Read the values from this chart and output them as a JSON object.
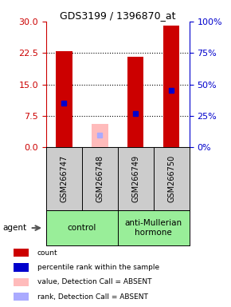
{
  "title": "GDS3199 / 1396870_at",
  "samples": [
    "GSM266747",
    "GSM266748",
    "GSM266749",
    "GSM266750"
  ],
  "count_values": [
    23.0,
    5.5,
    21.5,
    29.0
  ],
  "percentile_values": [
    35.0,
    10.0,
    27.0,
    45.0
  ],
  "absent": [
    false,
    true,
    false,
    false
  ],
  "ylim_left": [
    0,
    30
  ],
  "ylim_right": [
    0,
    100
  ],
  "yticks_left": [
    0,
    7.5,
    15,
    22.5,
    30
  ],
  "yticks_right": [
    0,
    25,
    50,
    75,
    100
  ],
  "groups": [
    {
      "label": "control",
      "indices": [
        0,
        1
      ],
      "color": "#99ee99"
    },
    {
      "label": "anti-Mullerian\nhormone",
      "indices": [
        2,
        3
      ],
      "color": "#99ee99"
    }
  ],
  "bar_width": 0.45,
  "bar_color_normal": "#cc0000",
  "bar_color_absent": "#ffbbbb",
  "rank_color_normal": "#0000cc",
  "rank_color_absent": "#aaaaff",
  "background_color": "#ffffff",
  "plot_bg_color": "#ffffff",
  "sample_box_color": "#cccccc",
  "left_axis_color": "#cc0000",
  "right_axis_color": "#0000cc",
  "group_border_color": "#000000"
}
